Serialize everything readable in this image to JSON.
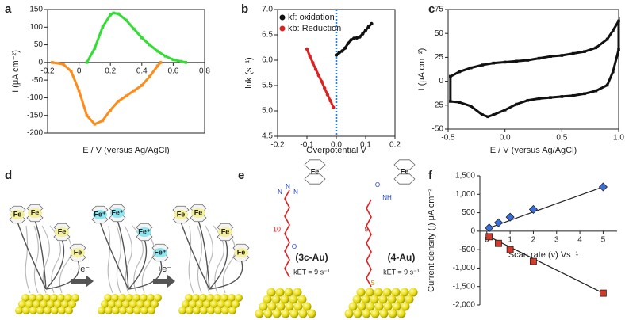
{
  "chart_data": [
    {
      "type": "line",
      "panel": "a",
      "ylabel": "I (μA cm⁻²)",
      "xlabel": "E / V (versus Ag/AgCl)",
      "xlim": [
        -0.2,
        0.8
      ],
      "xticks": [
        -0.2,
        0,
        0.2,
        0.4,
        0.6,
        0.8
      ],
      "ylim": [
        -200,
        150
      ],
      "yticks": [
        -200,
        -150,
        -100,
        -50,
        0,
        50,
        100,
        150
      ],
      "series": [
        {
          "color": "#33dd33",
          "marker": "square",
          "x": [
            0.05,
            0.1,
            0.15,
            0.2,
            0.22,
            0.25,
            0.3,
            0.35,
            0.4,
            0.45,
            0.5,
            0.55,
            0.6,
            0.65,
            0.68
          ],
          "values": [
            0,
            40,
            100,
            135,
            140,
            138,
            120,
            95,
            70,
            50,
            32,
            18,
            8,
            3,
            0
          ]
        },
        {
          "color": "#ff8c1a",
          "marker": "square",
          "x": [
            -0.17,
            -0.1,
            -0.05,
            0,
            0.05,
            0.1,
            0.15,
            0.2,
            0.25,
            0.3,
            0.35,
            0.4,
            0.45,
            0.5,
            0.52
          ],
          "values": [
            0,
            -5,
            -25,
            -80,
            -150,
            -175,
            -165,
            -135,
            -110,
            -95,
            -80,
            -65,
            -40,
            -10,
            0
          ]
        }
      ]
    },
    {
      "type": "line",
      "panel": "b",
      "ylabel": "lnk (s⁻¹)",
      "xlabel": "Overpotential V",
      "xlim": [
        -0.2,
        0.2
      ],
      "xticks": [
        -0.2,
        -0.1,
        {
          "value": 0,
          "label": "0.0"
        },
        0.1,
        0.2
      ],
      "ylim": [
        4.5,
        7.0
      ],
      "yticks": [
        4.5,
        {
          "value": 5,
          "label": "5.0"
        },
        5.5,
        {
          "value": 6,
          "label": "6.0"
        },
        6.5,
        {
          "value": 7,
          "label": "7.0"
        }
      ],
      "reference_line_x": 0,
      "legend": "upper left",
      "series": [
        {
          "name": "kf: oxidation",
          "color": "#111111",
          "marker": "circle",
          "x": [
            0,
            0.01,
            0.02,
            0.03,
            0.04,
            0.05,
            0.06,
            0.07,
            0.08,
            0.09,
            0.1,
            0.11,
            0.12
          ],
          "values": [
            6.1,
            6.15,
            6.18,
            6.24,
            6.33,
            6.4,
            6.43,
            6.44,
            6.46,
            6.52,
            6.59,
            6.66,
            6.72
          ]
        },
        {
          "name": "kb: Reduction",
          "color": "#dd2222",
          "marker": "circle",
          "x": [
            -0.1,
            -0.09,
            -0.08,
            -0.07,
            -0.06,
            -0.05,
            -0.04,
            -0.03,
            -0.02,
            -0.01
          ],
          "values": [
            6.22,
            6.08,
            5.95,
            5.82,
            5.7,
            5.58,
            5.45,
            5.32,
            5.2,
            5.07
          ]
        }
      ]
    },
    {
      "type": "line",
      "panel": "c",
      "ylabel": "I (μA cm⁻²)",
      "xlabel": "E / V (versus Ag/AgCl)",
      "xlim": [
        -0.5,
        1.0
      ],
      "xticks": [
        -0.5,
        {
          "value": 0,
          "label": "0.0"
        },
        0.5,
        {
          "value": 1,
          "label": "1.0"
        }
      ],
      "ylim": [
        -50,
        75
      ],
      "yticks": [
        -50,
        -25,
        0,
        25,
        50,
        75
      ],
      "series": [
        {
          "color": "#111111",
          "marker": "square",
          "x": [
            -0.48,
            -0.4,
            -0.3,
            -0.2,
            -0.1,
            0,
            0.1,
            0.2,
            0.3,
            0.4,
            0.5,
            0.6,
            0.7,
            0.8,
            0.9,
            0.95,
            1.0,
            1.0,
            0.95,
            0.9,
            0.8,
            0.7,
            0.6,
            0.5,
            0.4,
            0.3,
            0.2,
            0.1,
            0,
            -0.1,
            -0.15,
            -0.2,
            -0.3,
            -0.4,
            -0.48,
            -0.48
          ],
          "values": [
            5,
            10,
            14,
            17,
            19,
            20,
            21,
            22,
            24,
            26,
            27,
            29,
            31,
            35,
            44,
            53,
            63,
            33,
            10,
            -4,
            -10,
            -13,
            -15,
            -16,
            -17,
            -18,
            -20,
            -24,
            -30,
            -35,
            -37,
            -35,
            -26,
            -22,
            -21,
            5
          ]
        }
      ]
    },
    {
      "type": "scatter",
      "panel": "f",
      "ylabel": "Current density (j) μA cm⁻²",
      "xlabel": "Scan rate (v) Vs⁻¹",
      "xlim": [
        -0.3,
        5.6
      ],
      "xticks": [
        0,
        1,
        2,
        3,
        4,
        5
      ],
      "ylim": [
        -2000,
        1500
      ],
      "yticks": [
        {
          "value": 1500,
          "label": "1,500"
        },
        {
          "value": 1000,
          "label": "1,000"
        },
        500,
        0,
        -500,
        {
          "value": -1000,
          "label": "-1,000"
        },
        {
          "value": -1500,
          "label": "-1,500"
        },
        {
          "value": -2000,
          "label": "-2,000"
        }
      ],
      "series": [
        {
          "color": "#3a6fd8",
          "marker": "diamond",
          "x": [
            0.1,
            0.5,
            1,
            2,
            5
          ],
          "values": [
            90,
            230,
            380,
            590,
            1200
          ]
        },
        {
          "color": "#d23a2a",
          "marker": "square",
          "x": [
            0.1,
            0.5,
            1,
            2,
            5
          ],
          "values": [
            -150,
            -330,
            -500,
            -820,
            -1680
          ]
        }
      ]
    }
  ],
  "diagram_d": {
    "panel": "d",
    "groups": [
      [
        "Fe",
        "Fe",
        "Fe",
        "Fe"
      ],
      [
        "Fe⁺",
        "Fe⁺",
        "Fe⁺",
        "Fe⁺"
      ],
      [
        "Fe",
        "Fe",
        "Fe",
        "Fe"
      ]
    ],
    "arrows": [
      "−e⁻",
      "+e⁻"
    ]
  },
  "diagram_e": {
    "panel": "e",
    "molecules": [
      {
        "name": "(3c-Au)",
        "rate": "kET = 9 s⁻¹",
        "chain": "10",
        "metal": "Fe",
        "atoms": [
          "N",
          "N",
          "N",
          "O"
        ]
      },
      {
        "name": "(4-Au)",
        "rate": "kET = 9 s⁻¹",
        "chain": "9",
        "metal": "Fe",
        "atoms": [
          "O",
          "NH",
          "S"
        ]
      }
    ]
  }
}
